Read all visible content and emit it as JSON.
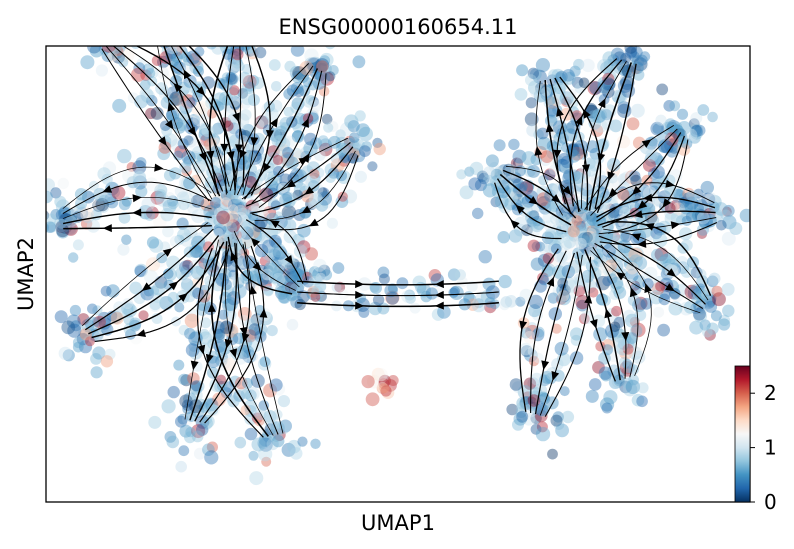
{
  "chart_data": {
    "type": "scatter",
    "title": "ENSG00000160654.11",
    "xlabel": "UMAP1",
    "ylabel": "UMAP2",
    "xticks": [],
    "yticks": [],
    "colorbar": {
      "colormap": "RdBu_r",
      "range": [
        0,
        2.5
      ],
      "ticks": [
        0,
        1,
        2
      ],
      "tick_labels": [
        "0",
        "1",
        "2"
      ],
      "stops": [
        "#053061",
        "#2166ac",
        "#4393c3",
        "#92c5de",
        "#d1e5f0",
        "#f7f7f7",
        "#fddbc7",
        "#f4a582",
        "#d6604d",
        "#b2182b",
        "#67001f"
      ]
    },
    "overlay": "velocity streamlines with arrowheads",
    "left_cluster": {
      "center": [
        -4.6,
        1.6
      ],
      "lobes": [
        {
          "tip": [
            -8.1,
            6.5
          ]
        },
        {
          "tip": [
            -6.5,
            6.7
          ]
        },
        {
          "tip": [
            -4.4,
            6.6
          ]
        },
        {
          "tip": [
            -2.2,
            5.8
          ]
        },
        {
          "tip": [
            -1.2,
            3.6
          ]
        },
        {
          "tip": [
            -2.7,
            -0.4
          ]
        },
        {
          "tip": [
            -3.4,
            -4.6
          ]
        },
        {
          "tip": [
            -5.7,
            -4.2
          ]
        },
        {
          "tip": [
            -8.7,
            -1.7
          ]
        },
        {
          "tip": [
            -9.4,
            1.5
          ]
        }
      ]
    },
    "right_cluster": {
      "center": [
        5.1,
        1.2
      ],
      "lobes": [
        {
          "tip": [
            2.8,
            2.8
          ]
        },
        {
          "tip": [
            4.2,
            5.5
          ]
        },
        {
          "tip": [
            6.4,
            6.0
          ]
        },
        {
          "tip": [
            7.9,
            4.0
          ]
        },
        {
          "tip": [
            8.9,
            1.7
          ]
        },
        {
          "tip": [
            8.6,
            -0.9
          ]
        },
        {
          "tip": [
            6.3,
            -3.0
          ]
        },
        {
          "tip": [
            3.8,
            -4.0
          ]
        }
      ]
    },
    "bridge": {
      "from": [
        -2.8,
        -0.5
      ],
      "via": [
        0.1,
        -1.5
      ],
      "to": [
        2.8,
        -0.5
      ]
    },
    "small_cluster": {
      "center": [
        -0.5,
        -3.0
      ]
    }
  }
}
